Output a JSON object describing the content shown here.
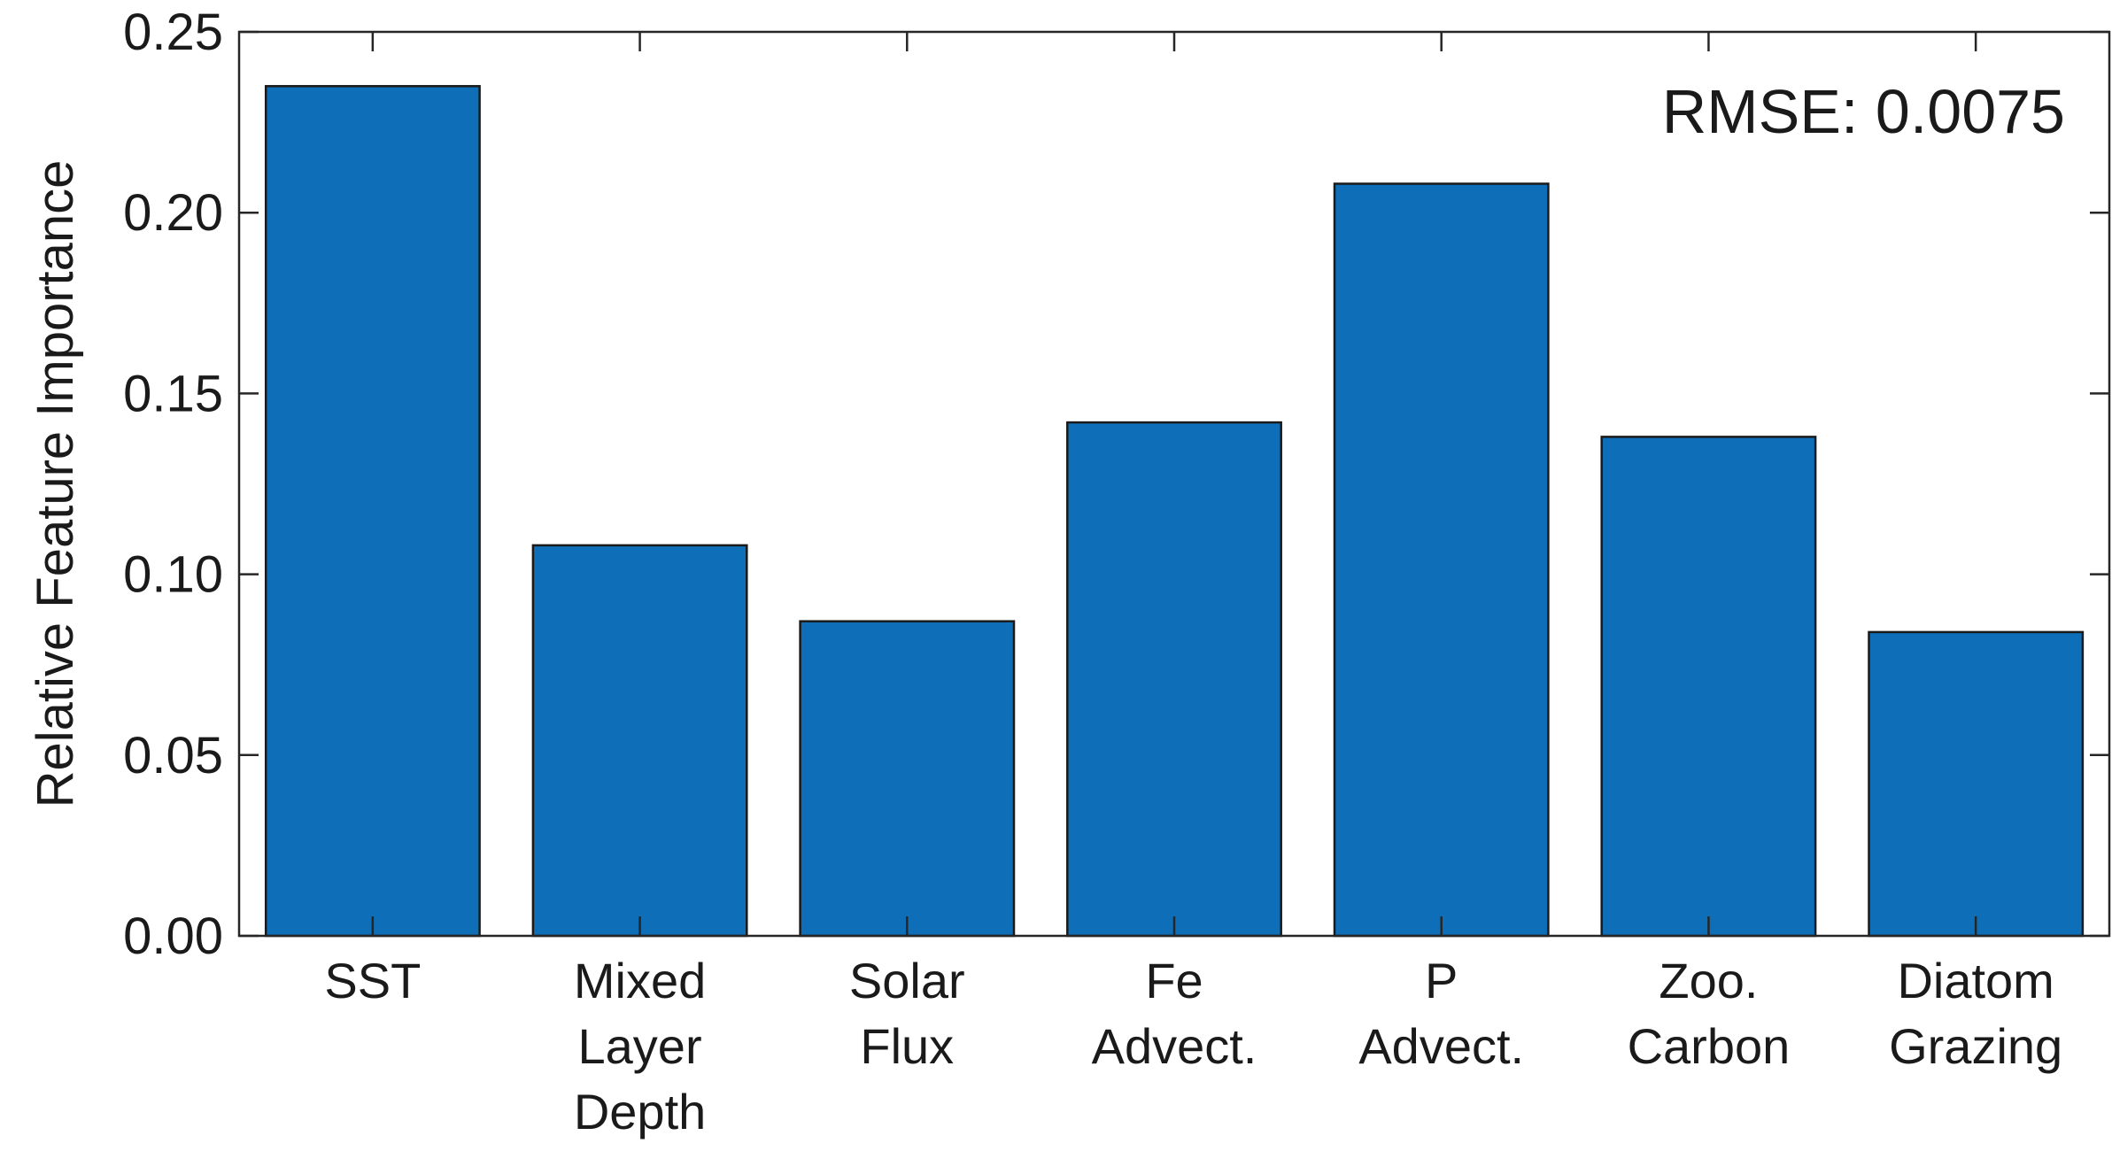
{
  "chart_data": {
    "type": "bar",
    "categories": [
      [
        "SST"
      ],
      [
        "Mixed",
        "Layer",
        "Depth"
      ],
      [
        "Solar",
        "Flux"
      ],
      [
        "Fe",
        "Advect."
      ],
      [
        "P",
        "Advect."
      ],
      [
        "Zoo.",
        "Carbon"
      ],
      [
        "Diatom",
        "Grazing"
      ]
    ],
    "values": [
      0.235,
      0.108,
      0.087,
      0.142,
      0.208,
      0.138,
      0.084
    ],
    "title": "",
    "xlabel": "",
    "ylabel": "Relative Feature Importance",
    "ylim": [
      0,
      0.25
    ],
    "yticks": [
      "0.00",
      "0.05",
      "0.10",
      "0.15",
      "0.20",
      "0.25"
    ],
    "annotation": "RMSE: 0.0075",
    "grid": false,
    "bar_color": "#0e6fb8",
    "bar_edge_color": "#1a1a1a"
  }
}
